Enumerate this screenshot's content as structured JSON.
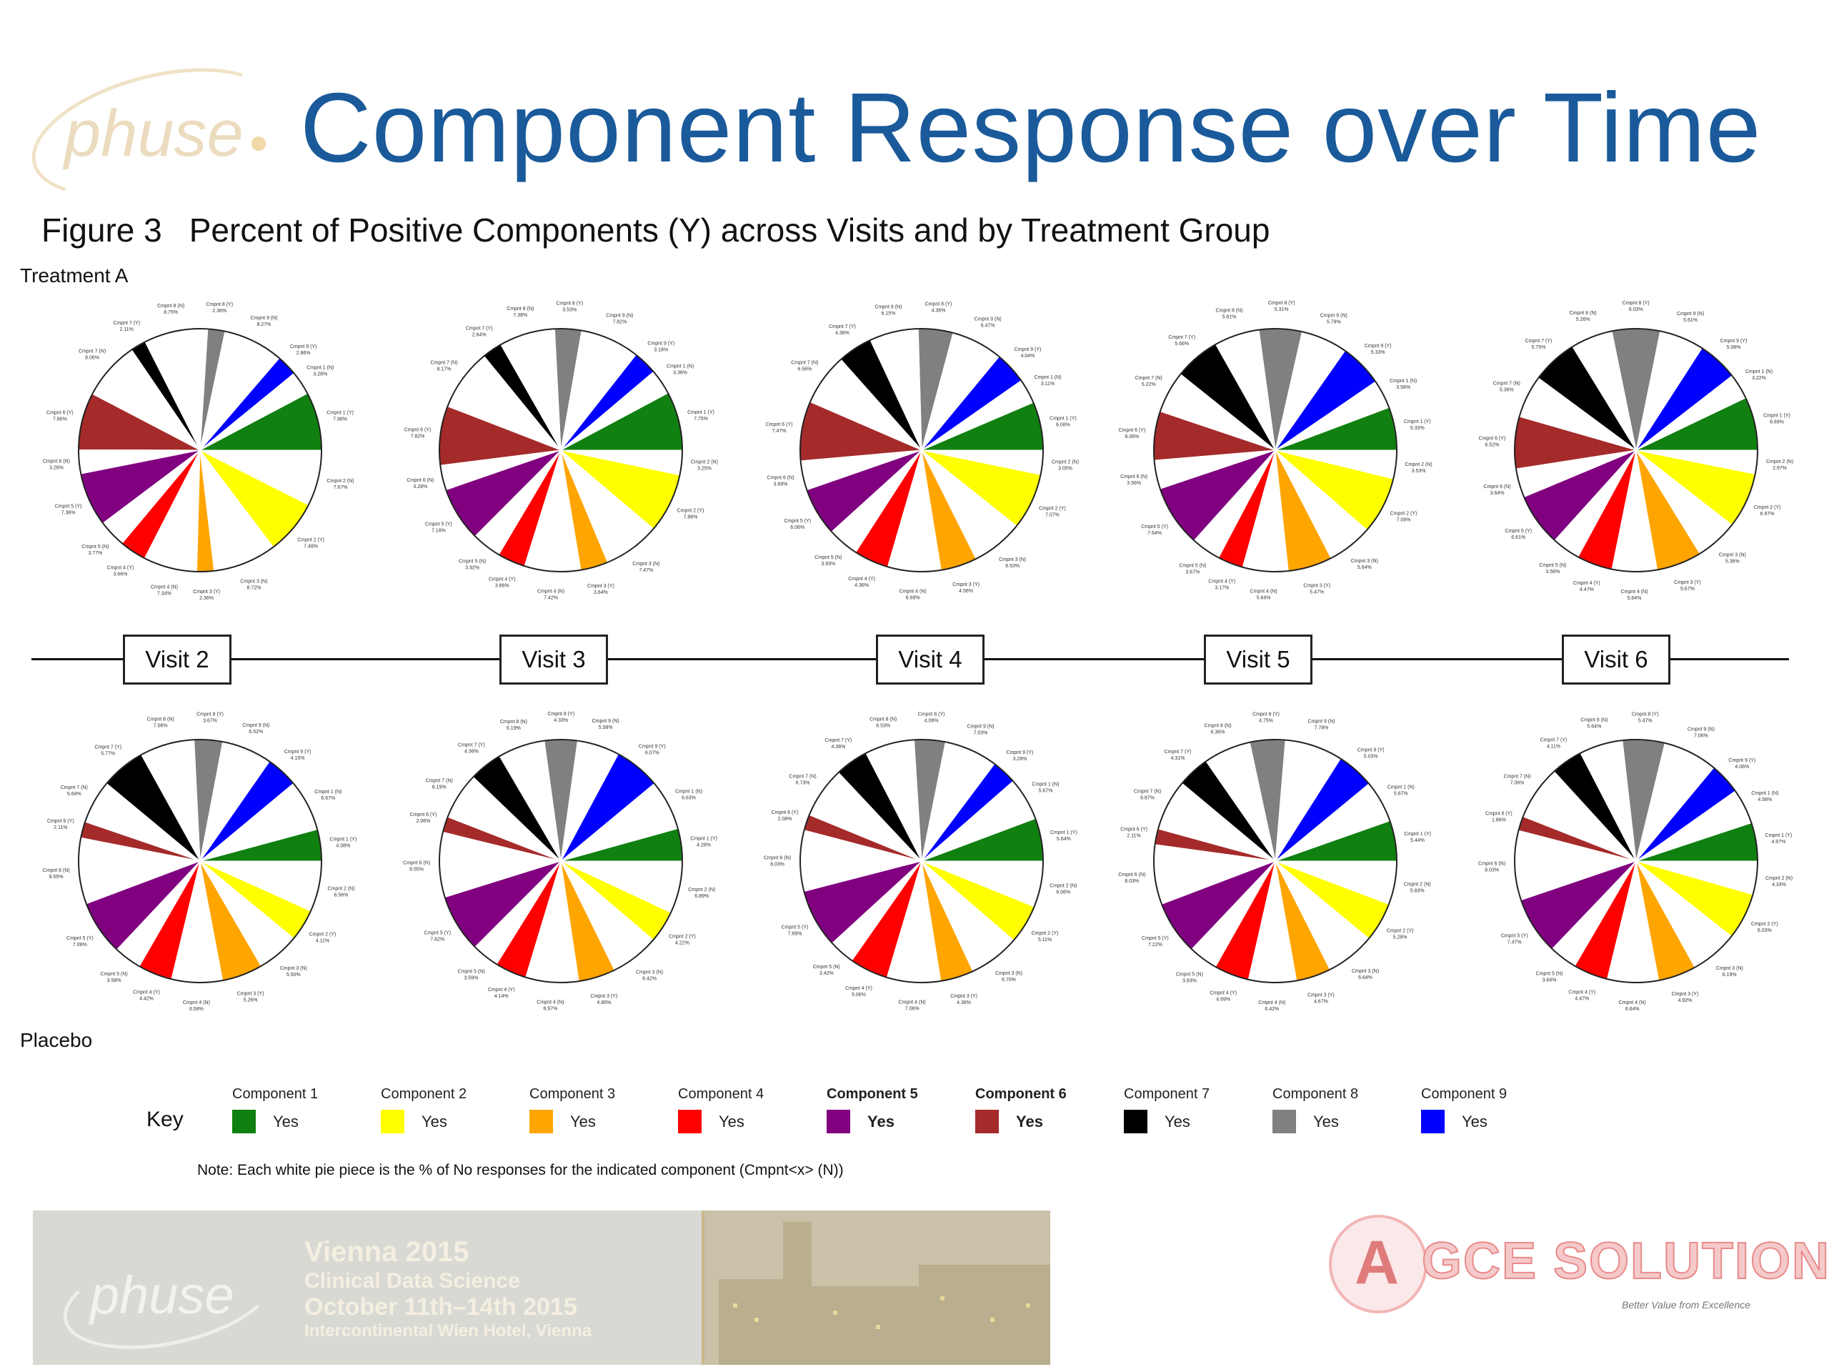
{
  "page": {
    "title": "Component Response over Time",
    "figure_number": "Figure 3",
    "figure_caption": "Percent of Positive Components (Y) across Visits and by Treatment Group",
    "treatment_label": "Treatment A",
    "placebo_label": "Placebo",
    "visits": [
      "Visit 2",
      "Visit 3",
      "Visit 4",
      "Visit 5",
      "Visit 6"
    ],
    "key_label": "Key",
    "note": "Note: Each white pie piece is the % of No responses for the indicated component (Cmpnt<x> (N))",
    "logo_text": "phuse",
    "banner": {
      "logo": "phuse",
      "line1": "Vienna 2015",
      "line2": "Clinical Data Science",
      "line3": "October 11th–14th 2015",
      "line4": "Intercontinental Wien Hotel, Vienna"
    },
    "sponsor": {
      "name": "GCE SOLUTIONS",
      "tagline": "Better Value from Excellence"
    }
  },
  "legend": [
    {
      "name": "Component 1",
      "value": "Yes",
      "color": "#108010",
      "bold": false
    },
    {
      "name": "Component 2",
      "value": "Yes",
      "color": "#ffff00",
      "bold": false
    },
    {
      "name": "Component 3",
      "value": "Yes",
      "color": "#ffa500",
      "bold": false
    },
    {
      "name": "Component 4",
      "value": "Yes",
      "color": "#ff0000",
      "bold": false
    },
    {
      "name": "Component 5",
      "value": "Yes",
      "color": "#800080",
      "bold": true
    },
    {
      "name": "Component 6",
      "value": "Yes",
      "color": "#a52a2a",
      "bold": true
    },
    {
      "name": "Component 7",
      "value": "Yes",
      "color": "#000000",
      "bold": false
    },
    {
      "name": "Component 8",
      "value": "Yes",
      "color": "#808080",
      "bold": false
    },
    {
      "name": "Component 9",
      "value": "Yes",
      "color": "#0000ff",
      "bold": false
    }
  ],
  "chart_data": [
    {
      "type": "pie",
      "group": "Treatment A",
      "visit": "Visit 2",
      "slice_order": [
        "Cmpnt 1 (Y)",
        "Cmpnt 1 (N)",
        "Cmpnt 9 (Y)",
        "Cmpnt 9 (N)",
        "Cmpnt 8 (Y)",
        "Cmpnt 8 (N)",
        "Cmpnt 7 (Y)",
        "Cmpnt 7 (N)",
        "Cmpnt 6 (Y)",
        "Cmpnt 6 (N)",
        "Cmpnt 5 (Y)",
        "Cmpnt 5 (N)",
        "Cmpnt 4 (Y)",
        "Cmpnt 4 (N)",
        "Cmpnt 3 (Y)",
        "Cmpnt 3 (N)",
        "Cmpnt 2 (Y)",
        "Cmpnt 2 (N)"
      ],
      "values": [
        7.98,
        3.28,
        2.86,
        8.27,
        2.36,
        8.75,
        2.11,
        8.06,
        7.86,
        3.26,
        7.36,
        3.77,
        3.66,
        7.34,
        2.36,
        8.72,
        7.48,
        7.67
      ]
    },
    {
      "type": "pie",
      "group": "Treatment A",
      "visit": "Visit 3",
      "slice_order": [
        "Cmpnt 1 (Y)",
        "Cmpnt 1 (N)",
        "Cmpnt 9 (Y)",
        "Cmpnt 9 (N)",
        "Cmpnt 8 (Y)",
        "Cmpnt 8 (N)",
        "Cmpnt 7 (Y)",
        "Cmpnt 7 (N)",
        "Cmpnt 6 (Y)",
        "Cmpnt 6 (N)",
        "Cmpnt 5 (Y)",
        "Cmpnt 5 (N)",
        "Cmpnt 4 (Y)",
        "Cmpnt 4 (N)",
        "Cmpnt 3 (Y)",
        "Cmpnt 3 (N)",
        "Cmpnt 2 (Y)",
        "Cmpnt 2 (N)"
      ],
      "values": [
        7.75,
        3.36,
        3.18,
        7.82,
        3.53,
        7.38,
        2.64,
        8.17,
        7.82,
        3.28,
        7.18,
        3.92,
        3.66,
        7.42,
        3.64,
        7.47,
        7.86,
        3.25
      ]
    },
    {
      "type": "pie",
      "group": "Treatment A",
      "visit": "Visit 4",
      "slice_order": [
        "Cmpnt 1 (Y)",
        "Cmpnt 1 (N)",
        "Cmpnt 9 (Y)",
        "Cmpnt 9 (N)",
        "Cmpnt 8 (Y)",
        "Cmpnt 8 (N)",
        "Cmpnt 7 (Y)",
        "Cmpnt 7 (N)",
        "Cmpnt 6 (Y)",
        "Cmpnt 6 (N)",
        "Cmpnt 5 (Y)",
        "Cmpnt 5 (N)",
        "Cmpnt 4 (Y)",
        "Cmpnt 4 (N)",
        "Cmpnt 3 (Y)",
        "Cmpnt 3 (N)",
        "Cmpnt 2 (Y)",
        "Cmpnt 2 (N)"
      ],
      "values": [
        6.08,
        3.11,
        4.04,
        6.47,
        4.36,
        6.15,
        4.36,
        6.56,
        7.47,
        3.69,
        6.06,
        3.93,
        4.36,
        6.69,
        4.56,
        6.53,
        7.07,
        3.05
      ]
    },
    {
      "type": "pie",
      "group": "Treatment A",
      "visit": "Visit 5",
      "slice_order": [
        "Cmpnt 1 (Y)",
        "Cmpnt 1 (N)",
        "Cmpnt 9 (Y)",
        "Cmpnt 9 (N)",
        "Cmpnt 8 (Y)",
        "Cmpnt 8 (N)",
        "Cmpnt 7 (Y)",
        "Cmpnt 7 (N)",
        "Cmpnt 6 (Y)",
        "Cmpnt 6 (N)",
        "Cmpnt 5 (Y)",
        "Cmpnt 5 (N)",
        "Cmpnt 4 (Y)",
        "Cmpnt 4 (N)",
        "Cmpnt 3 (Y)",
        "Cmpnt 3 (N)",
        "Cmpnt 2 (Y)",
        "Cmpnt 2 (N)"
      ],
      "values": [
        5.33,
        3.58,
        5.33,
        5.79,
        5.31,
        5.61,
        5.66,
        5.22,
        6.06,
        3.56,
        7.64,
        3.67,
        3.17,
        5.64,
        5.47,
        5.64,
        7.08,
        3.53
      ]
    },
    {
      "type": "pie",
      "group": "Treatment A",
      "visit": "Visit 6",
      "slice_order": [
        "Cmpnt 1 (Y)",
        "Cmpnt 1 (N)",
        "Cmpnt 9 (Y)",
        "Cmpnt 9 (N)",
        "Cmpnt 8 (Y)",
        "Cmpnt 8 (N)",
        "Cmpnt 7 (Y)",
        "Cmpnt 7 (N)",
        "Cmpnt 6 (Y)",
        "Cmpnt 6 (N)",
        "Cmpnt 5 (Y)",
        "Cmpnt 5 (N)",
        "Cmpnt 4 (Y)",
        "Cmpnt 4 (N)",
        "Cmpnt 3 (Y)",
        "Cmpnt 3 (N)",
        "Cmpnt 2 (Y)",
        "Cmpnt 2 (N)"
      ],
      "values": [
        6.69,
        3.22,
        5.08,
        5.61,
        6.03,
        5.26,
        5.75,
        5.36,
        6.52,
        3.64,
        6.61,
        3.56,
        4.47,
        5.64,
        5.67,
        5.36,
        6.97,
        2.97
      ]
    },
    {
      "type": "pie",
      "group": "Placebo",
      "visit": "Visit 2",
      "slice_order": [
        "Cmpnt 1 (Y)",
        "Cmpnt 1 (N)",
        "Cmpnt 9 (Y)",
        "Cmpnt 9 (N)",
        "Cmpnt 8 (Y)",
        "Cmpnt 8 (N)",
        "Cmpnt 7 (Y)",
        "Cmpnt 7 (N)",
        "Cmpnt 6 (Y)",
        "Cmpnt 6 (N)",
        "Cmpnt 5 (Y)",
        "Cmpnt 5 (N)",
        "Cmpnt 4 (Y)",
        "Cmpnt 4 (N)",
        "Cmpnt 3 (Y)",
        "Cmpnt 3 (N)",
        "Cmpnt 2 (Y)",
        "Cmpnt 2 (N)"
      ],
      "values": [
        4.08,
        6.67,
        4.15,
        6.52,
        3.67,
        7.06,
        5.77,
        5.64,
        2.11,
        8.55,
        7.08,
        3.58,
        4.42,
        6.58,
        5.26,
        5.5,
        4.11,
        6.56
      ]
    },
    {
      "type": "pie",
      "group": "Placebo",
      "visit": "Visit 3",
      "slice_order": [
        "Cmpnt 1 (Y)",
        "Cmpnt 1 (N)",
        "Cmpnt 9 (Y)",
        "Cmpnt 9 (N)",
        "Cmpnt 8 (Y)",
        "Cmpnt 8 (N)",
        "Cmpnt 7 (Y)",
        "Cmpnt 7 (N)",
        "Cmpnt 6 (Y)",
        "Cmpnt 6 (N)",
        "Cmpnt 5 (Y)",
        "Cmpnt 5 (N)",
        "Cmpnt 4 (Y)",
        "Cmpnt 4 (N)",
        "Cmpnt 3 (Y)",
        "Cmpnt 3 (N)",
        "Cmpnt 2 (Y)",
        "Cmpnt 2 (N)"
      ],
      "values": [
        4.28,
        6.63,
        6.07,
        5.58,
        4.33,
        6.19,
        4.36,
        6.19,
        2.06,
        8.55,
        7.62,
        3.59,
        4.14,
        6.97,
        4.86,
        6.42,
        4.22,
        6.89
      ]
    },
    {
      "type": "pie",
      "group": "Placebo",
      "visit": "Visit 4",
      "slice_order": [
        "Cmpnt 1 (Y)",
        "Cmpnt 1 (N)",
        "Cmpnt 9 (Y)",
        "Cmpnt 9 (N)",
        "Cmpnt 8 (Y)",
        "Cmpnt 8 (N)",
        "Cmpnt 7 (Y)",
        "Cmpnt 7 (N)",
        "Cmpnt 6 (Y)",
        "Cmpnt 6 (N)",
        "Cmpnt 5 (Y)",
        "Cmpnt 5 (N)",
        "Cmpnt 4 (Y)",
        "Cmpnt 4 (N)",
        "Cmpnt 3 (Y)",
        "Cmpnt 3 (N)",
        "Cmpnt 2 (Y)",
        "Cmpnt 2 (N)"
      ],
      "values": [
        5.64,
        5.67,
        3.28,
        7.03,
        4.08,
        6.53,
        4.36,
        6.73,
        2.08,
        8.03,
        7.69,
        3.42,
        5.06,
        7.06,
        4.36,
        6.7,
        5.11,
        6.06
      ]
    },
    {
      "type": "pie",
      "group": "Placebo",
      "visit": "Visit 5",
      "slice_order": [
        "Cmpnt 1 (Y)",
        "Cmpnt 1 (N)",
        "Cmpnt 9 (Y)",
        "Cmpnt 9 (N)",
        "Cmpnt 8 (Y)",
        "Cmpnt 8 (N)",
        "Cmpnt 7 (Y)",
        "Cmpnt 7 (N)",
        "Cmpnt 6 (Y)",
        "Cmpnt 6 (N)",
        "Cmpnt 5 (Y)",
        "Cmpnt 5 (N)",
        "Cmpnt 4 (Y)",
        "Cmpnt 4 (N)",
        "Cmpnt 3 (Y)",
        "Cmpnt 3 (N)",
        "Cmpnt 2 (Y)",
        "Cmpnt 2 (N)"
      ],
      "values": [
        5.44,
        5.67,
        5.03,
        7.78,
        4.75,
        6.36,
        4.31,
        6.87,
        2.11,
        8.03,
        7.22,
        3.93,
        4.69,
        6.42,
        4.67,
        6.64,
        5.28,
        5.83
      ]
    },
    {
      "type": "pie",
      "group": "Placebo",
      "visit": "Visit 6",
      "slice_order": [
        "Cmpnt 1 (Y)",
        "Cmpnt 1 (N)",
        "Cmpnt 9 (Y)",
        "Cmpnt 9 (N)",
        "Cmpnt 8 (Y)",
        "Cmpnt 8 (N)",
        "Cmpnt 7 (Y)",
        "Cmpnt 7 (N)",
        "Cmpnt 6 (Y)",
        "Cmpnt 6 (N)",
        "Cmpnt 5 (Y)",
        "Cmpnt 5 (N)",
        "Cmpnt 4 (Y)",
        "Cmpnt 4 (N)",
        "Cmpnt 3 (Y)",
        "Cmpnt 3 (N)",
        "Cmpnt 2 (Y)",
        "Cmpnt 2 (N)"
      ],
      "values": [
        4.97,
        4.58,
        4.06,
        7.06,
        5.47,
        5.64,
        4.11,
        7.06,
        1.86,
        9.03,
        7.47,
        3.64,
        4.47,
        6.64,
        4.92,
        6.19,
        6.03,
        4.33
      ]
    }
  ]
}
